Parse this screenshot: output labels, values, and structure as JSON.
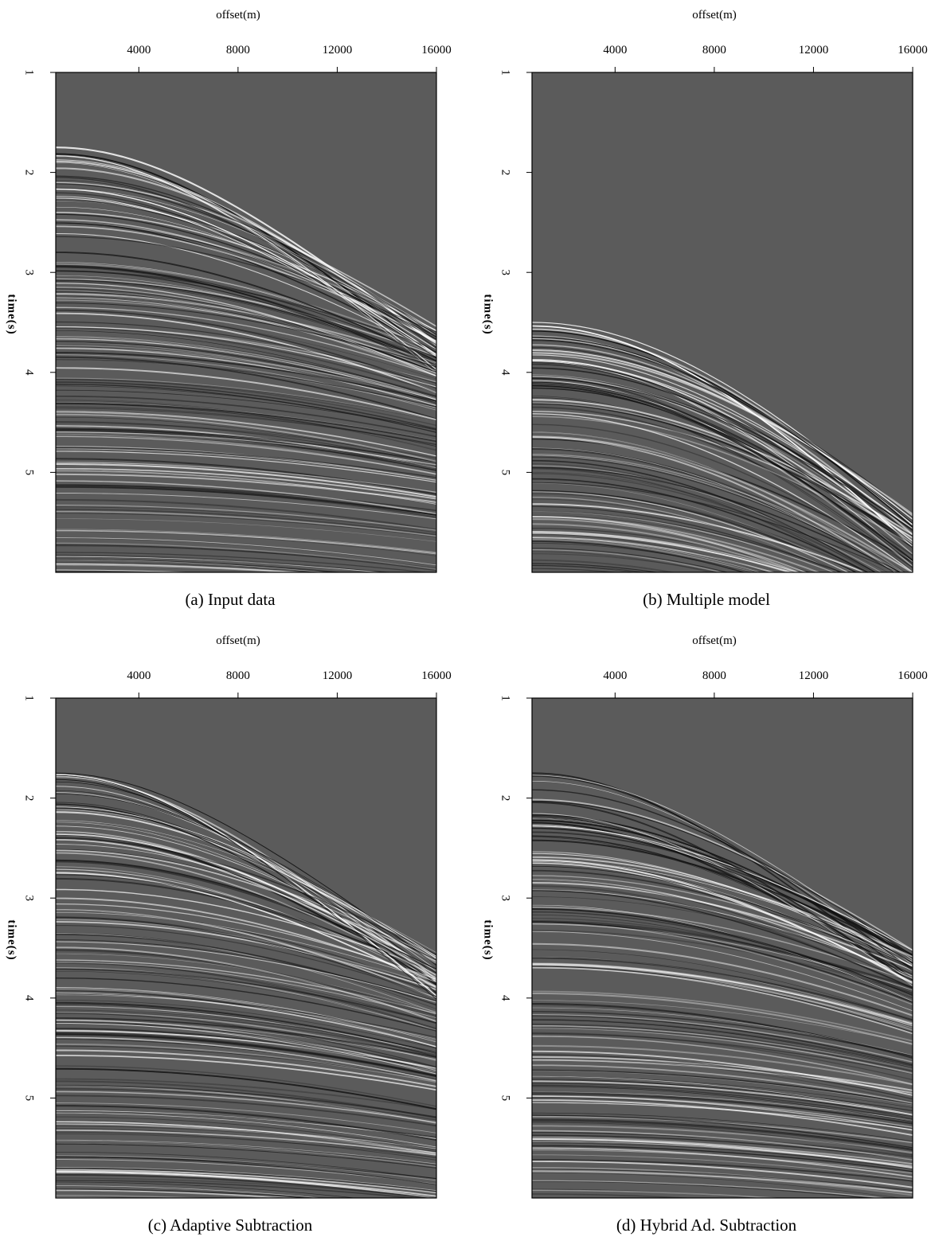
{
  "chart_data": [
    {
      "type": "seismic-section",
      "title": "(a) Input data",
      "x_label": "offset(m)",
      "y_label": "time(s)",
      "xlim": [
        650,
        16000
      ],
      "xticks": [
        4000,
        8000,
        12000,
        16000
      ],
      "ylim": [
        6,
        1
      ],
      "yticks": [
        1,
        2,
        3,
        4,
        5
      ]
    },
    {
      "type": "seismic-section",
      "title": "(b) Multiple model",
      "x_label": "offset(m)",
      "y_label": "time(s)",
      "xlim": [
        650,
        16000
      ],
      "xticks": [
        4000,
        8000,
        12000,
        16000
      ],
      "ylim": [
        6,
        1
      ],
      "yticks": [
        1,
        2,
        3,
        4,
        5
      ]
    },
    {
      "type": "seismic-section",
      "title": "(c) Adaptive Subtraction",
      "x_label": "offset(m)",
      "y_label": "time(s)",
      "xlim": [
        650,
        16000
      ],
      "xticks": [
        4000,
        8000,
        12000,
        16000
      ],
      "ylim": [
        6,
        1
      ],
      "yticks": [
        1,
        2,
        3,
        4,
        5
      ]
    },
    {
      "type": "seismic-section",
      "title": "(d) Hybrid Ad. Subtraction",
      "x_label": "offset(m)",
      "y_label": "time(s)",
      "xlim": [
        650,
        16000
      ],
      "xticks": [
        4000,
        8000,
        12000,
        16000
      ],
      "ylim": [
        6,
        1
      ],
      "yticks": [
        1,
        2,
        3,
        4,
        5
      ]
    }
  ]
}
